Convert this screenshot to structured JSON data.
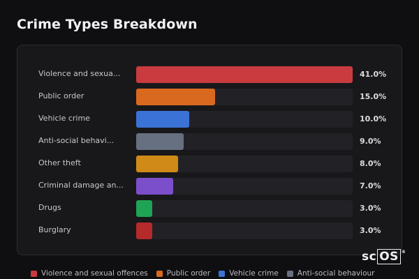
{
  "page": {
    "title": "Crime Types Breakdown"
  },
  "chart_data": {
    "type": "bar",
    "orientation": "horizontal",
    "title": "Crime Types Breakdown",
    "xlabel": "",
    "ylabel": "",
    "xlim": [
      0,
      41
    ],
    "grid": false,
    "legend_position": "bottom",
    "categories": [
      {
        "label": "Violence and sexual offences",
        "display_label": "Violence and sexua...",
        "value": 41.0,
        "display_value": "41.0%",
        "color": "#c93b3f"
      },
      {
        "label": "Public order",
        "display_label": "Public order",
        "value": 15.0,
        "display_value": "15.0%",
        "color": "#d8691f"
      },
      {
        "label": "Vehicle crime",
        "display_label": "Vehicle crime",
        "value": 10.0,
        "display_value": "10.0%",
        "color": "#3b72d6"
      },
      {
        "label": "Anti-social behaviour",
        "display_label": "Anti-social behavi...",
        "value": 9.0,
        "display_value": "9.0%",
        "color": "#667080"
      },
      {
        "label": "Other theft",
        "display_label": "Other theft",
        "value": 8.0,
        "display_value": "8.0%",
        "color": "#d08a17"
      },
      {
        "label": "Criminal damage and arson",
        "display_label": "Criminal damage an...",
        "value": 7.0,
        "display_value": "7.0%",
        "color": "#7b4fcb"
      },
      {
        "label": "Drugs",
        "display_label": "Drugs",
        "value": 3.0,
        "display_value": "3.0%",
        "color": "#1fa354"
      },
      {
        "label": "Burglary",
        "display_label": "Burglary",
        "value": 3.0,
        "display_value": "3.0%",
        "color": "#b52a2a"
      }
    ],
    "legend": [
      {
        "label": "Violence and sexual offences",
        "color": "#c93b3f"
      },
      {
        "label": "Public order",
        "color": "#d8691f"
      },
      {
        "label": "Vehicle crime",
        "color": "#3b72d6"
      },
      {
        "label": "Anti-social behaviour",
        "color": "#667080"
      }
    ]
  },
  "watermark": {
    "prefix": "sc",
    "boxed": "OS",
    "mark": "®"
  }
}
